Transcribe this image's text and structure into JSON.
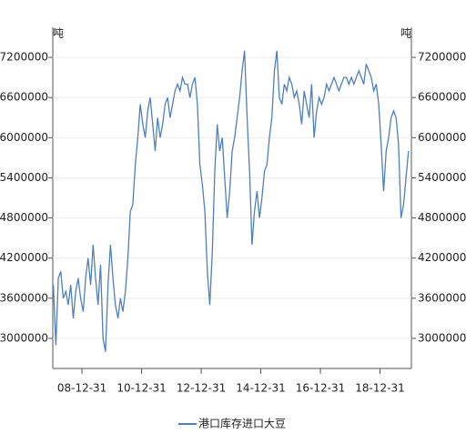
{
  "chart_data": {
    "type": "line",
    "y_unit": "吨",
    "y2_unit": "吨",
    "x": [
      "08-01-15",
      "08-02-15",
      "08-03-15",
      "08-04-15",
      "08-05-15",
      "08-06-15",
      "08-07-15",
      "08-08-15",
      "08-09-15",
      "08-10-15",
      "08-11-15",
      "08-12-15",
      "09-01-15",
      "09-02-15",
      "09-03-15",
      "09-04-15",
      "09-05-15",
      "09-06-15",
      "09-07-15",
      "09-08-15",
      "09-09-15",
      "09-10-15",
      "09-11-15",
      "09-12-15",
      "10-01-15",
      "10-02-15",
      "10-03-15",
      "10-04-15",
      "10-05-15",
      "10-06-15",
      "10-07-15",
      "10-08-15",
      "10-09-15",
      "10-10-15",
      "10-11-15",
      "10-12-15",
      "11-01-15",
      "11-02-15",
      "11-03-15",
      "11-04-15",
      "11-05-15",
      "11-06-15",
      "11-07-15",
      "11-08-15",
      "11-09-15",
      "11-10-15",
      "11-11-15",
      "11-12-15",
      "12-01-15",
      "12-02-15",
      "12-03-15",
      "12-04-15",
      "12-05-15",
      "12-06-15",
      "12-07-15",
      "12-08-15",
      "12-09-15",
      "12-10-15",
      "12-11-15",
      "12-12-15",
      "13-01-15",
      "13-02-15",
      "13-03-15",
      "13-04-15",
      "13-05-15",
      "13-06-15",
      "13-07-15",
      "13-08-15",
      "13-09-15",
      "13-10-15",
      "13-11-15",
      "13-12-15",
      "14-01-15",
      "14-02-15",
      "14-03-15",
      "14-04-15",
      "14-05-15",
      "14-06-15",
      "14-07-15",
      "14-08-15",
      "14-09-15",
      "14-10-15",
      "14-11-15",
      "14-12-15",
      "15-01-15",
      "15-02-15",
      "15-03-15",
      "15-04-15",
      "15-05-15",
      "15-06-15",
      "15-07-15",
      "15-08-15",
      "15-09-15",
      "15-10-15",
      "15-11-15",
      "15-12-15",
      "16-01-15",
      "16-02-15",
      "16-03-15",
      "16-04-15",
      "16-05-15",
      "16-06-15",
      "16-07-15",
      "16-08-15",
      "16-09-15",
      "16-10-15",
      "16-11-15",
      "16-12-15",
      "17-01-15",
      "17-02-15",
      "17-03-15",
      "17-04-15",
      "17-05-15",
      "17-06-15",
      "17-07-15",
      "17-08-15",
      "17-09-15",
      "17-10-15",
      "17-11-15",
      "17-12-15",
      "18-01-15",
      "18-02-15",
      "18-03-15",
      "18-04-15",
      "18-05-15",
      "18-06-15",
      "18-07-15",
      "18-08-15",
      "18-09-15",
      "18-10-15",
      "18-11-15",
      "18-12-15",
      "19-01-15",
      "19-02-15",
      "19-03-15",
      "19-04-15",
      "19-05-15",
      "19-06-15",
      "19-07-15",
      "19-08-15",
      "19-09-15",
      "19-10-15",
      "19-11-15",
      "19-12-15"
    ],
    "series": [
      {
        "name": "港口库存进口大豆",
        "color": "#4f7fbf",
        "values": [
          3800000,
          2900000,
          3900000,
          4000000,
          3600000,
          3700000,
          3500000,
          3800000,
          3300000,
          3700000,
          3900000,
          3600000,
          3400000,
          3900000,
          4200000,
          3800000,
          4400000,
          3900000,
          3500000,
          4100000,
          3000000,
          2800000,
          3800000,
          4400000,
          3900000,
          3500000,
          3300000,
          3600000,
          3400000,
          3700000,
          4200000,
          4900000,
          5000000,
          5600000,
          6000000,
          6500000,
          6200000,
          6000000,
          6400000,
          6600000,
          6200000,
          5800000,
          6300000,
          6000000,
          6200000,
          6500000,
          6600000,
          6300000,
          6500000,
          6700000,
          6800000,
          6700000,
          6900000,
          6800000,
          6800000,
          6600000,
          6800000,
          6900000,
          6500000,
          5600000,
          5300000,
          4900000,
          4000000,
          3500000,
          4300000,
          5500000,
          6200000,
          5800000,
          6000000,
          5400000,
          4800000,
          5200000,
          5800000,
          6000000,
          6300000,
          6600000,
          7000000,
          7300000,
          6300000,
          5500000,
          4400000,
          4900000,
          5200000,
          4800000,
          5100000,
          5500000,
          5600000,
          6000000,
          6300000,
          7000000,
          7300000,
          6600000,
          6500000,
          6800000,
          6700000,
          6900000,
          6800000,
          6600000,
          6700000,
          6500000,
          6200000,
          6700000,
          6500000,
          6300000,
          6800000,
          6000000,
          6400000,
          6600000,
          6500000,
          6600000,
          6800000,
          6700000,
          6800000,
          6900000,
          6800000,
          6700000,
          6800000,
          6900000,
          6900000,
          6800000,
          6900000,
          6800000,
          6900000,
          7000000,
          6900000,
          6800000,
          7100000,
          7000000,
          6900000,
          6700000,
          6800000,
          6500000,
          5900000,
          5200000,
          5800000,
          6000000,
          6300000,
          6400000,
          6300000,
          5900000,
          4800000,
          5000000,
          5400000,
          5800000
        ]
      }
    ],
    "xlim": [
      "08-01-08",
      "20-01-20"
    ],
    "xticks": [
      "08-12-31",
      "10-12-31",
      "12-12-31",
      "14-12-31",
      "16-12-31",
      "18-12-31"
    ],
    "ylim": [
      2550000,
      7650000
    ],
    "yticks": [
      3000000,
      3600000,
      4200000,
      4800000,
      5400000,
      6000000,
      6600000,
      7200000
    ],
    "y2lim": [
      2550000,
      7650000
    ],
    "y2ticks": [
      3000000,
      3600000,
      4200000,
      4800000,
      5400000,
      6000000,
      6600000,
      7200000
    ],
    "grid": true
  }
}
